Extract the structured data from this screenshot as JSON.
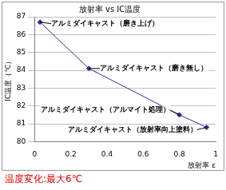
{
  "chart_data": {
    "type": "line",
    "title": "放射率 vs IC温度",
    "x_label": "放射率 ε",
    "y_label": "IC温度（℃）",
    "x": [
      0.03,
      0.3,
      0.8,
      0.95
    ],
    "values": [
      86.7,
      84.1,
      81.5,
      80.8
    ],
    "point_labels": [
      "アルミダイキャスト（磨き上げ）",
      "アルミダイキャスト（磨き無し）",
      "アルミダイキャスト（アルマイト処理）",
      "アルミダイキャスト（放射率向上塗料）"
    ],
    "color": "#2e3192",
    "marker": "diamond",
    "xlim": [
      0,
      1
    ],
    "xticks": [
      0,
      0.2,
      0.4,
      0.6,
      0.8,
      1
    ],
    "ylim": [
      80,
      87
    ],
    "yticks": [
      80,
      81,
      82,
      83,
      84,
      85,
      86,
      87
    ],
    "grid": true,
    "caption": "温度変化:最大6℃"
  }
}
